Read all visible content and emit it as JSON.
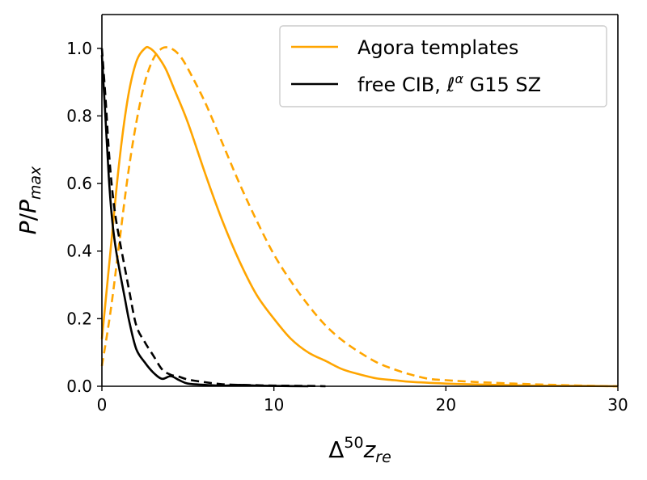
{
  "chart_data": {
    "type": "line",
    "xlabel": "Δ⁵⁰z_re",
    "ylabel": "P/P_max",
    "xlim": [
      0,
      30
    ],
    "ylim": [
      0,
      1.1
    ],
    "xticks": [
      0,
      10,
      20,
      30
    ],
    "yticks": [
      0.0,
      0.2,
      0.4,
      0.6,
      0.8,
      1.0
    ],
    "xtick_labels": [
      "0",
      "10",
      "20",
      "30"
    ],
    "ytick_labels": [
      "0.0",
      "0.2",
      "0.4",
      "0.6",
      "0.8",
      "1.0"
    ],
    "grid": false,
    "legend_position": "top-right",
    "legend": [
      {
        "label": "Agora templates",
        "color": "#ffa500",
        "style": "solid"
      },
      {
        "label": "free CIB, ℓ^α G15 SZ",
        "color": "#000000",
        "style": "solid"
      }
    ],
    "series": [
      {
        "color": "#ffa500",
        "style": "solid",
        "x": [
          0,
          0.5,
          1,
          1.5,
          2,
          2.5,
          2.8,
          3.2,
          3.7,
          4.2,
          5,
          6,
          7,
          8,
          9,
          10,
          11,
          12,
          13,
          14,
          15,
          16,
          17,
          18,
          20,
          22,
          25,
          28,
          30
        ],
        "y": [
          0.14,
          0.4,
          0.66,
          0.85,
          0.96,
          1.0,
          1.0,
          0.98,
          0.94,
          0.88,
          0.78,
          0.63,
          0.49,
          0.37,
          0.27,
          0.2,
          0.14,
          0.1,
          0.075,
          0.05,
          0.035,
          0.023,
          0.018,
          0.013,
          0.008,
          0.005,
          0.002,
          0.001,
          0.0
        ]
      },
      {
        "color": "#ffa500",
        "style": "dashed",
        "x": [
          0,
          0.5,
          1,
          1.5,
          2,
          2.5,
          3,
          3.5,
          4,
          4.5,
          5,
          6,
          7,
          8,
          9,
          10,
          11,
          12,
          13,
          14,
          15,
          16,
          17,
          18,
          19,
          20,
          22,
          25,
          28,
          30
        ],
        "y": [
          0.06,
          0.22,
          0.42,
          0.62,
          0.78,
          0.9,
          0.97,
          1.0,
          1.0,
          0.98,
          0.94,
          0.84,
          0.72,
          0.6,
          0.49,
          0.39,
          0.31,
          0.24,
          0.18,
          0.135,
          0.1,
          0.07,
          0.05,
          0.034,
          0.022,
          0.018,
          0.012,
          0.006,
          0.002,
          0.0
        ]
      },
      {
        "color": "#000000",
        "style": "solid",
        "x": [
          0,
          0.2,
          0.4,
          0.6,
          0.8,
          1,
          1.3,
          1.6,
          2,
          2.5,
          3,
          3.5,
          4,
          4.5,
          5,
          6,
          7,
          8,
          9,
          10,
          12
        ],
        "y": [
          0.98,
          0.8,
          0.62,
          0.49,
          0.41,
          0.35,
          0.27,
          0.19,
          0.11,
          0.07,
          0.04,
          0.022,
          0.03,
          0.018,
          0.008,
          0.004,
          0.002,
          0.004,
          0.002,
          0.001,
          0.0
        ]
      },
      {
        "color": "#000000",
        "style": "dashed",
        "x": [
          0,
          0.2,
          0.4,
          0.6,
          0.8,
          1,
          1.3,
          1.6,
          2,
          2.5,
          3,
          3.5,
          4,
          4.5,
          5,
          6,
          7,
          8,
          9,
          10,
          12,
          13
        ],
        "y": [
          1.0,
          0.86,
          0.7,
          0.58,
          0.5,
          0.44,
          0.36,
          0.28,
          0.18,
          0.13,
          0.09,
          0.05,
          0.034,
          0.028,
          0.02,
          0.012,
          0.006,
          0.004,
          0.003,
          0.002,
          0.001,
          0.0
        ]
      }
    ]
  }
}
